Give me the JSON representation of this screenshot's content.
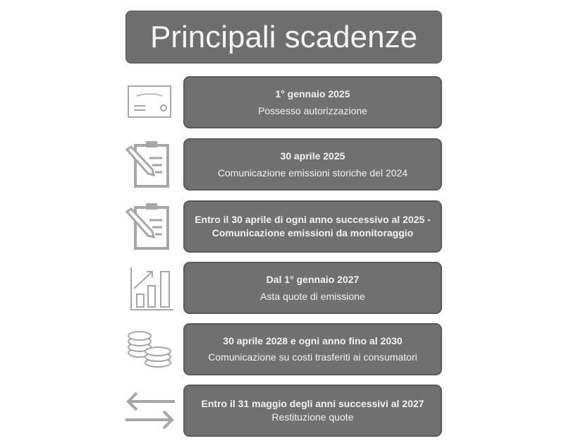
{
  "title": "Principali scadenze",
  "colors": {
    "box": "#707070",
    "text": "#f2f2f2",
    "icon": "#a6a6a6"
  },
  "items": [
    {
      "date": "1° gennaio 2025",
      "text": "Possesso autorizzazione",
      "icon": "certificate-icon"
    },
    {
      "date": "30 aprile 2025",
      "text": "Comunicazione emissioni storiche del 2024",
      "icon": "clipboard-pencil-icon"
    },
    {
      "date": "Entro il 30 aprile di ogni anno successivo al 2025 - Comunicazione emissioni da monitoraggio",
      "text": "",
      "icon": "clipboard-pencil-icon"
    },
    {
      "date": "Dal 1° gennaio 2027",
      "text": "Asta quote di emissione",
      "icon": "bar-chart-growth-icon"
    },
    {
      "date": "30 aprile 2028 e ogni anno fino al 2030",
      "text": "Comunicazione su costi trasferiti ai consumatori",
      "icon": "coins-icon"
    },
    {
      "date": "Entro il 31 maggio degli anni successivi al 2027",
      "text": "Restituzione quote",
      "icon": "exchange-arrows-icon"
    }
  ]
}
